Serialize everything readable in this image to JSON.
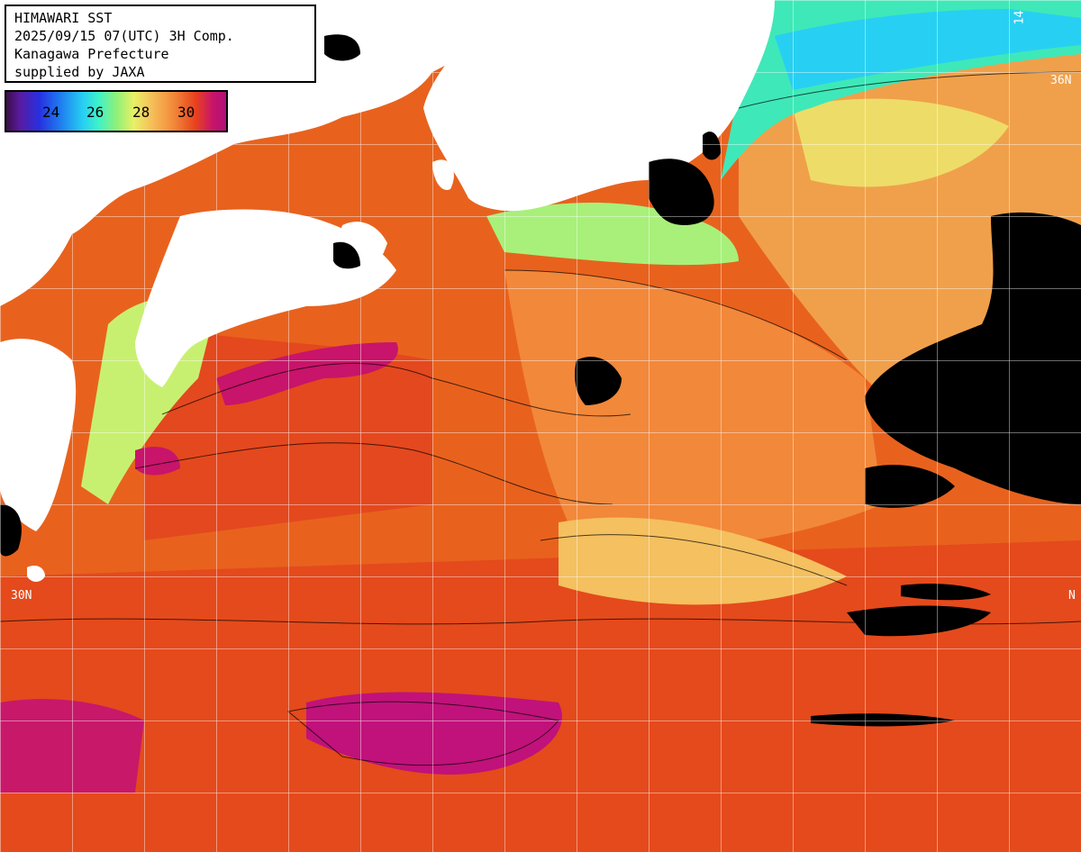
{
  "info": {
    "line1": "HIMAWARI SST",
    "line2": "2025/09/15 07(UTC) 3H Comp.",
    "line3": "Kanagawa Prefecture",
    "line4": "supplied by JAXA"
  },
  "legend": {
    "labels": [
      "24",
      "26",
      "28",
      "30"
    ]
  },
  "grid_labels": {
    "lat_30": "30N",
    "lat_30_right": "N",
    "lat_35_right": "36N",
    "lon_top": "14"
  },
  "colors": {
    "land": "#ffffff",
    "no_data": "#000000",
    "sst_30": "#e8521e",
    "sst_31": "#c8146a",
    "sst_28": "#f4b860",
    "sst_26": "#b8f07a",
    "sst_24": "#27c8e8",
    "grid": "#ffffff"
  }
}
